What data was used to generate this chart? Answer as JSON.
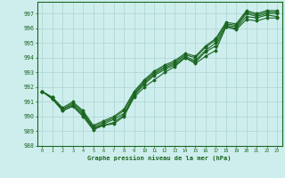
{
  "title": "Graphe pression niveau de la mer (hPa)",
  "ylabel_ticks": [
    988,
    989,
    990,
    991,
    992,
    993,
    994,
    995,
    996,
    997
  ],
  "xlim": [
    -0.5,
    23.5
  ],
  "ylim": [
    988.0,
    997.8
  ],
  "bg_color": "#ceeeed",
  "grid_color": "#aad4d3",
  "line_color": "#1a6620",
  "series": [
    [
      991.7,
      991.2,
      990.4,
      990.7,
      990.0,
      989.1,
      989.4,
      989.5,
      990.0,
      991.3,
      992.0,
      992.5,
      993.0,
      993.4,
      994.0,
      993.6,
      994.1,
      994.5,
      996.1,
      995.9,
      996.6,
      996.5,
      996.7,
      996.7
    ],
    [
      991.7,
      991.2,
      990.4,
      990.7,
      990.1,
      989.2,
      989.4,
      989.6,
      990.1,
      991.4,
      992.2,
      992.8,
      993.2,
      993.5,
      994.0,
      993.7,
      994.4,
      994.8,
      996.1,
      996.0,
      996.8,
      996.7,
      996.9,
      996.8
    ],
    [
      991.7,
      991.3,
      990.5,
      990.8,
      990.2,
      989.2,
      989.5,
      989.8,
      990.2,
      991.5,
      992.3,
      992.9,
      993.3,
      993.6,
      994.1,
      993.8,
      994.5,
      995.0,
      996.2,
      996.1,
      997.0,
      996.8,
      997.0,
      997.0
    ],
    [
      991.7,
      991.3,
      990.5,
      990.9,
      990.3,
      989.3,
      989.6,
      989.9,
      990.4,
      991.6,
      992.4,
      993.0,
      993.4,
      993.7,
      994.2,
      994.0,
      994.7,
      995.2,
      996.3,
      996.2,
      997.1,
      996.9,
      997.1,
      997.1
    ],
    [
      991.7,
      991.3,
      990.6,
      991.0,
      990.4,
      989.4,
      989.7,
      990.0,
      990.5,
      991.7,
      992.5,
      993.1,
      993.5,
      993.8,
      994.3,
      994.1,
      994.8,
      995.3,
      996.4,
      996.3,
      997.2,
      997.0,
      997.2,
      997.2
    ]
  ]
}
